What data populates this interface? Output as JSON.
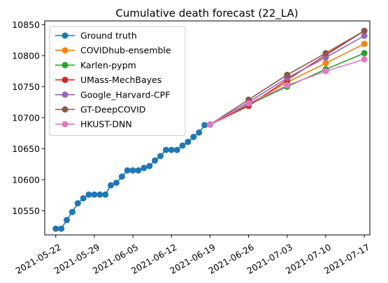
{
  "chart_data": {
    "type": "line",
    "title": "Cumulative death forecast (22_LA)",
    "xlabel": "",
    "ylabel": "",
    "x_ticks": [
      "2021-05-22",
      "2021-05-29",
      "2021-06-05",
      "2021-06-12",
      "2021-06-19",
      "2021-06-26",
      "2021-07-03",
      "2021-07-10",
      "2021-07-17"
    ],
    "y_ticks": [
      10550,
      10600,
      10650,
      10700,
      10750,
      10800,
      10850
    ],
    "xlim": [
      "2021-05-20",
      "2021-07-18"
    ],
    "ylim": [
      10511,
      10856
    ],
    "grid": false,
    "legend_position": "top-left",
    "series": [
      {
        "name": "Ground truth",
        "color": "#1f77b4",
        "x": [
          "2021-05-22",
          "2021-05-23",
          "2021-05-24",
          "2021-05-25",
          "2021-05-26",
          "2021-05-27",
          "2021-05-28",
          "2021-05-29",
          "2021-05-30",
          "2021-05-31",
          "2021-06-01",
          "2021-06-02",
          "2021-06-03",
          "2021-06-04",
          "2021-06-05",
          "2021-06-06",
          "2021-06-07",
          "2021-06-08",
          "2021-06-09",
          "2021-06-10",
          "2021-06-11",
          "2021-06-12",
          "2021-06-13",
          "2021-06-14",
          "2021-06-15",
          "2021-06-16",
          "2021-06-17",
          "2021-06-18",
          "2021-06-19"
        ],
        "y": [
          10521,
          10521,
          10535,
          10548,
          10562,
          10570,
          10576,
          10576,
          10576,
          10576,
          10591,
          10595,
          10605,
          10615,
          10615,
          10615,
          10619,
          10622,
          10631,
          10638,
          10648,
          10648,
          10648,
          10655,
          10661,
          10669,
          10676,
          10688,
          10689
        ]
      },
      {
        "name": "COVIDhub-ensemble",
        "color": "#ff7f0e",
        "x": [
          "2021-06-19",
          "2021-06-26",
          "2021-07-03",
          "2021-07-10",
          "2021-07-17"
        ],
        "y": [
          10689,
          10722,
          10757,
          10788,
          10819
        ]
      },
      {
        "name": "Karlen-pypm",
        "color": "#2ca02c",
        "x": [
          "2021-06-19",
          "2021-06-26",
          "2021-07-03",
          "2021-07-10",
          "2021-07-17"
        ],
        "y": [
          10689,
          10721,
          10750,
          10778,
          10804
        ]
      },
      {
        "name": "UMass-MechBayes",
        "color": "#d62728",
        "x": [
          "2021-06-19",
          "2021-06-26",
          "2021-07-03",
          "2021-07-10",
          "2021-07-17"
        ],
        "y": [
          10689,
          10719,
          10761,
          10801,
          10840
        ]
      },
      {
        "name": "Google_Harvard-CPF",
        "color": "#9467bd",
        "x": [
          "2021-06-19",
          "2021-06-26",
          "2021-07-03",
          "2021-07-10",
          "2021-07-17"
        ],
        "y": [
          10689,
          10725,
          10764,
          10797,
          10832
        ]
      },
      {
        "name": "GT-DeepCOVID",
        "color": "#8c564b",
        "x": [
          "2021-06-19",
          "2021-06-26",
          "2021-07-03",
          "2021-07-10",
          "2021-07-17"
        ],
        "y": [
          10689,
          10729,
          10769,
          10804,
          10840
        ]
      },
      {
        "name": "HKUST-DNN",
        "color": "#e377c2",
        "x": [
          "2021-06-19",
          "2021-06-26",
          "2021-07-03",
          "2021-07-10",
          "2021-07-17"
        ],
        "y": [
          10689,
          10723,
          10752,
          10775,
          10794
        ]
      }
    ]
  }
}
